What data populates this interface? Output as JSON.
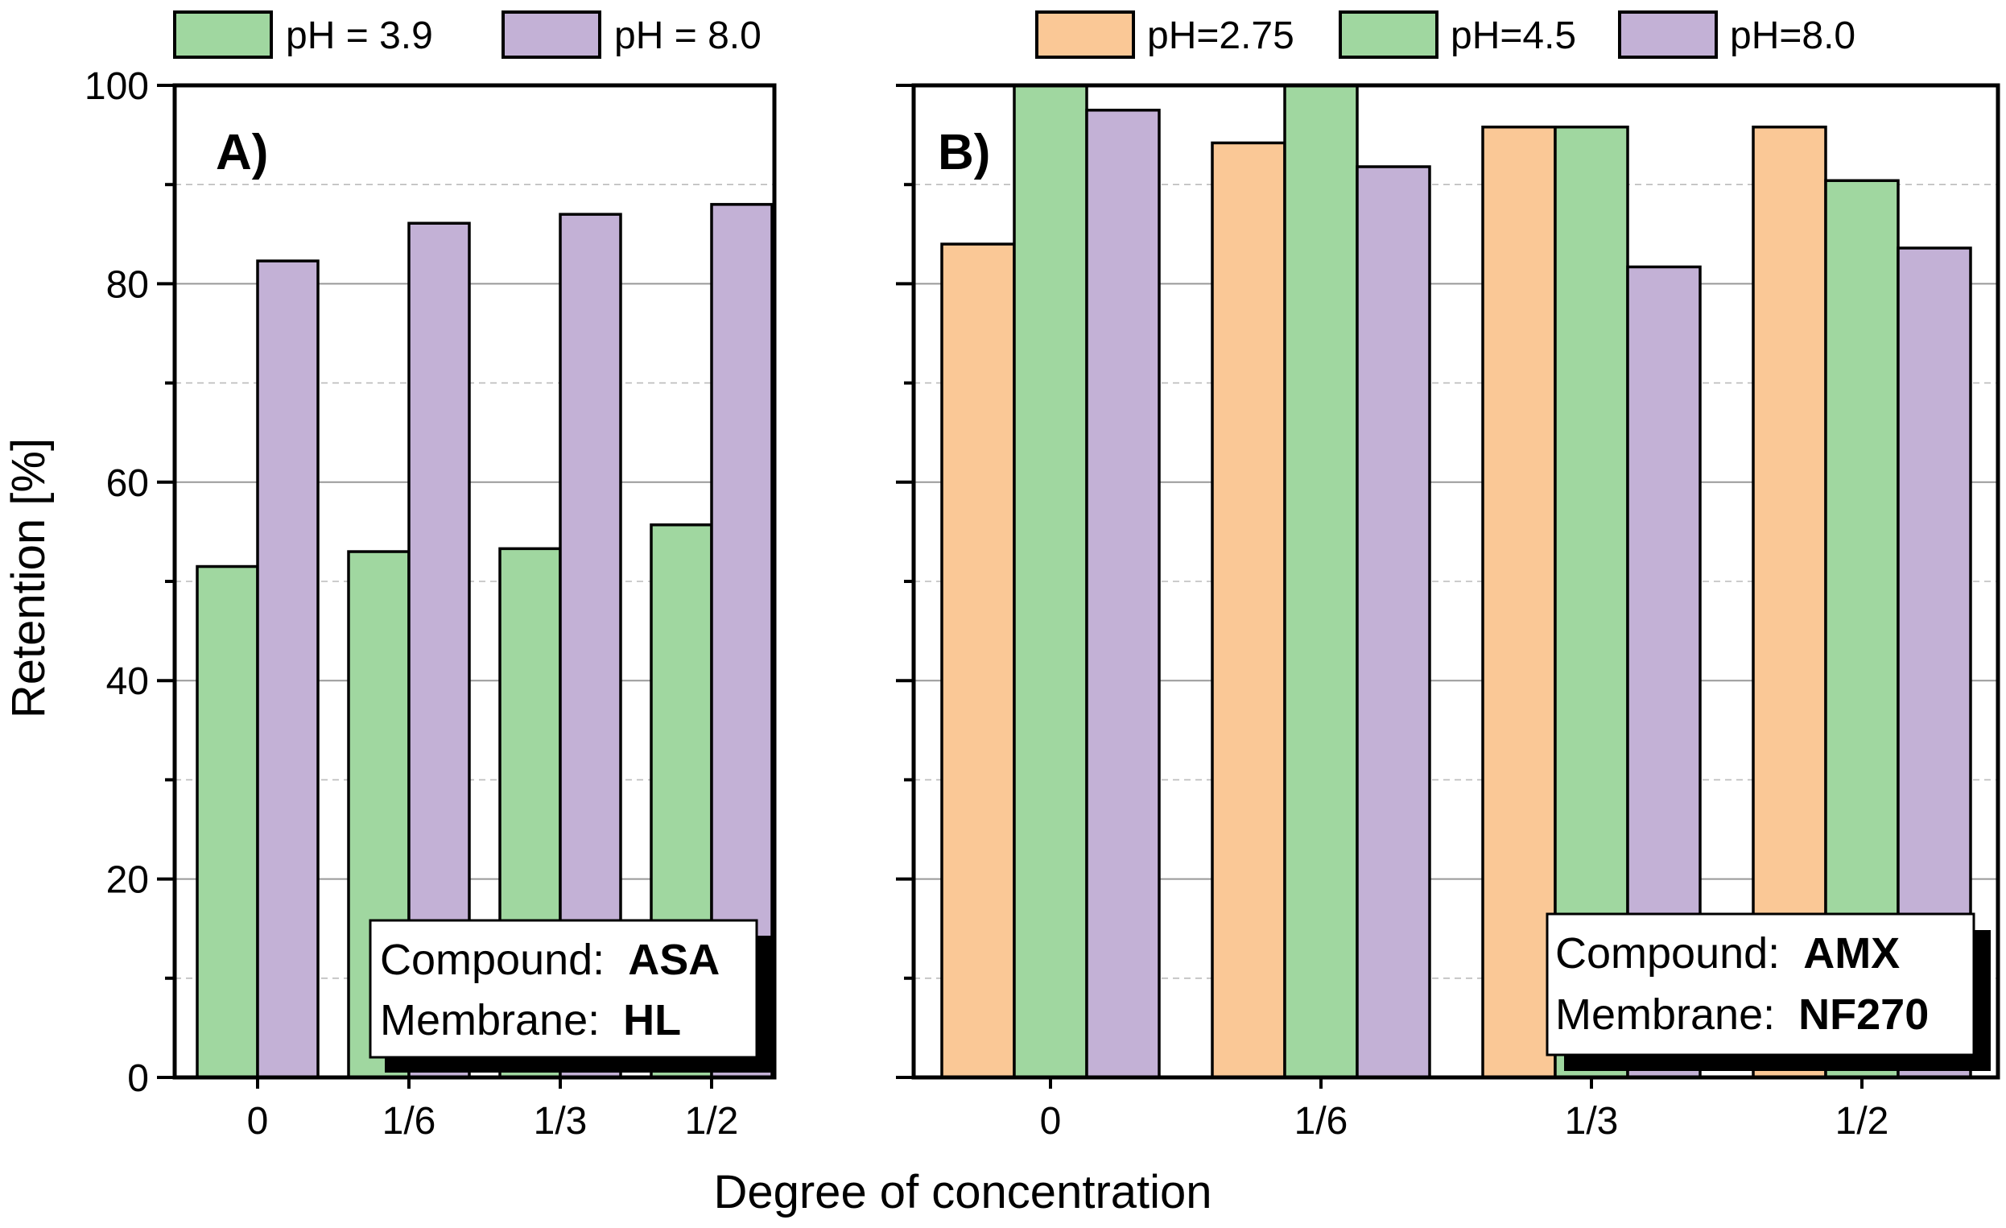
{
  "figure": {
    "ylabel": "Retention [%]",
    "xlabel": "Degree of concentration"
  },
  "colors": {
    "pH_low": "#FAC896",
    "pH_mid": "#A0D7A0",
    "pH_high": "#C3B1D6",
    "axis": "#000000",
    "grid_major": "#999999",
    "grid_minor": "#bbbbbb"
  },
  "chart_data": [
    {
      "type": "bar",
      "panel_label": "A)",
      "categories": [
        "0",
        "1/6",
        "1/3",
        "1/2"
      ],
      "series": [
        {
          "name": "pH = 3.9",
          "color": "#A0D7A0",
          "values": [
            51.5,
            53.0,
            53.3,
            55.7
          ]
        },
        {
          "name": "pH = 8.0",
          "color": "#C3B1D6",
          "values": [
            82.3,
            86.1,
            87.0,
            88.0
          ]
        }
      ],
      "ylim": [
        0,
        100
      ],
      "yticks": [
        0,
        20,
        40,
        60,
        80,
        100
      ],
      "ylabel": "Retention [%]",
      "xlabel": "Degree of concentration",
      "grid": true,
      "legend_position": "top",
      "info_box": {
        "compound_label": "Compound:",
        "compound": "ASA",
        "membrane_label": "Membrane:",
        "membrane": "HL",
        "position": "bottom-right"
      }
    },
    {
      "type": "bar",
      "panel_label": "B)",
      "categories": [
        "0",
        "1/6",
        "1/3",
        "1/2"
      ],
      "series": [
        {
          "name": "pH=2.75",
          "color": "#FAC896",
          "values": [
            84.0,
            94.2,
            95.8,
            95.8
          ]
        },
        {
          "name": "pH=4.5",
          "color": "#A0D7A0",
          "values": [
            100.0,
            100.0,
            95.8,
            90.4
          ]
        },
        {
          "name": "pH=8.0",
          "color": "#C3B1D6",
          "values": [
            97.5,
            91.8,
            81.7,
            83.6
          ]
        }
      ],
      "ylim": [
        0,
        100
      ],
      "yticks": [
        0,
        20,
        40,
        60,
        80,
        100
      ],
      "grid": true,
      "legend_position": "top",
      "info_box": {
        "compound_label": "Compound:",
        "compound": "AMX",
        "membrane_label": "Membrane:",
        "membrane": "NF270",
        "position": "bottom-right"
      }
    }
  ]
}
